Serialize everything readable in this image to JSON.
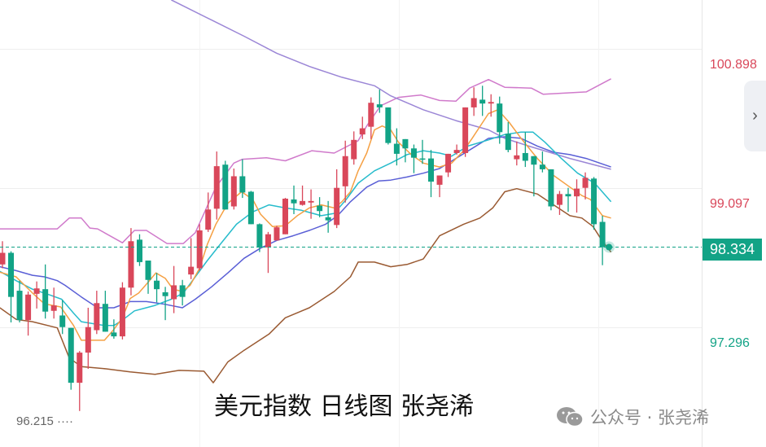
{
  "chart_data": {
    "type": "candlestick",
    "title": "",
    "caption": "美元指数 日线图 张尧浠",
    "colors": {
      "up": "#d9475a",
      "down": "#12a386",
      "ma5": "#f5a043",
      "ma10": "#27bccc",
      "ma20": "#5a5fd6",
      "ma60": "#9b86d6",
      "upper_band": "#d07acb",
      "lower_band": "#9a5a32",
      "grid": "#eeeeee"
    },
    "y_axis": {
      "position": "right",
      "ticks": [
        100.898,
        99.097,
        97.296
      ],
      "tick_labels": [
        "100.898",
        "99.097",
        "97.296"
      ],
      "tick_colors": [
        "#d9475a",
        "#d9475a",
        "#12a386"
      ]
    },
    "last_price": {
      "value": 98.334,
      "label": "98.334",
      "color": "#12a386"
    },
    "low_marker": {
      "value": 96.215,
      "label": "96.215 ····",
      "candle": 9
    },
    "ohlc_columns": [
      "open",
      "high",
      "low",
      "close"
    ],
    "candles": [
      [
        98.11,
        98.41,
        98.06,
        98.26
      ],
      [
        98.26,
        98.28,
        97.36,
        97.69
      ],
      [
        97.77,
        97.9,
        97.36,
        97.39
      ],
      [
        97.39,
        97.76,
        97.19,
        97.72
      ],
      [
        97.73,
        97.89,
        97.54,
        97.8
      ],
      [
        97.79,
        98.11,
        97.41,
        97.5
      ],
      [
        97.51,
        97.81,
        97.41,
        97.58
      ],
      [
        97.45,
        97.65,
        97.21,
        97.3
      ],
      [
        97.29,
        97.29,
        96.49,
        96.58
      ],
      [
        96.58,
        96.99,
        96.215,
        96.97
      ],
      [
        96.97,
        97.55,
        96.76,
        97.3
      ],
      [
        97.26,
        97.77,
        97.21,
        97.61
      ],
      [
        97.6,
        97.77,
        97.24,
        97.24
      ],
      [
        97.23,
        97.4,
        97.15,
        97.18
      ],
      [
        97.18,
        97.88,
        97.14,
        97.81
      ],
      [
        97.81,
        98.58,
        97.71,
        98.41
      ],
      [
        98.43,
        98.5,
        98.09,
        98.14
      ],
      [
        98.16,
        98.16,
        97.73,
        97.91
      ],
      [
        97.9,
        98.0,
        97.62,
        97.79
      ],
      [
        97.75,
        97.82,
        97.39,
        97.7
      ],
      [
        97.66,
        98.09,
        97.48,
        97.84
      ],
      [
        97.84,
        97.91,
        97.58,
        97.69
      ],
      [
        97.98,
        98.45,
        97.92,
        98.08
      ],
      [
        98.06,
        98.63,
        98.03,
        98.55
      ],
      [
        98.56,
        99.04,
        98.53,
        98.82
      ],
      [
        98.83,
        99.57,
        98.69,
        99.38
      ],
      [
        99.4,
        99.45,
        98.82,
        98.82
      ],
      [
        98.86,
        99.35,
        98.82,
        99.25
      ],
      [
        99.25,
        99.47,
        98.97,
        99.04
      ],
      [
        99.05,
        99.06,
        98.63,
        98.63
      ],
      [
        98.63,
        98.64,
        98.27,
        98.33
      ],
      [
        98.33,
        98.53,
        98.0,
        98.5
      ],
      [
        98.42,
        98.61,
        98.42,
        98.59
      ],
      [
        98.5,
        98.97,
        98.5,
        98.96
      ],
      [
        98.95,
        99.13,
        98.76,
        98.9
      ],
      [
        98.88,
        99.13,
        98.87,
        98.93
      ],
      [
        98.91,
        99.08,
        98.7,
        98.93
      ],
      [
        98.87,
        98.98,
        98.72,
        98.8
      ],
      [
        98.72,
        98.93,
        98.52,
        98.68
      ],
      [
        98.62,
        99.34,
        98.58,
        99.1
      ],
      [
        99.12,
        99.71,
        98.91,
        99.51
      ],
      [
        99.47,
        99.83,
        99.4,
        99.72
      ],
      [
        99.79,
        100.02,
        99.73,
        99.87
      ],
      [
        99.89,
        100.27,
        99.73,
        100.2
      ],
      [
        100.18,
        100.37,
        100.07,
        100.14
      ],
      [
        100.14,
        100.14,
        99.66,
        99.68
      ],
      [
        99.67,
        99.87,
        99.39,
        99.54
      ],
      [
        99.73,
        99.73,
        99.43,
        99.61
      ],
      [
        99.61,
        99.66,
        99.29,
        99.49
      ],
      [
        99.48,
        99.72,
        99.41,
        99.47
      ],
      [
        99.48,
        99.59,
        98.98,
        99.18
      ],
      [
        99.14,
        99.26,
        98.98,
        99.26
      ],
      [
        99.3,
        99.54,
        99.24,
        99.54
      ],
      [
        99.55,
        99.66,
        99.53,
        99.59
      ],
      [
        99.55,
        100.14,
        99.5,
        100.14
      ],
      [
        100.14,
        100.4,
        100.03,
        100.26
      ],
      [
        100.24,
        100.42,
        100.03,
        100.19
      ],
      [
        100.19,
        100.31,
        100.02,
        100.21
      ],
      [
        100.19,
        100.28,
        99.67,
        99.82
      ],
      [
        99.8,
        99.95,
        99.56,
        99.59
      ],
      [
        99.47,
        99.7,
        99.39,
        99.52
      ],
      [
        99.55,
        99.82,
        99.37,
        99.45
      ],
      [
        99.51,
        99.51,
        98.99,
        99.4
      ],
      [
        99.4,
        99.57,
        99.3,
        99.34
      ],
      [
        99.34,
        99.34,
        98.81,
        98.86
      ],
      [
        98.88,
        99.06,
        98.75,
        99.02
      ],
      [
        99.02,
        99.1,
        98.79,
        98.99
      ],
      [
        98.99,
        99.21,
        98.78,
        99.09
      ],
      [
        99.1,
        99.3,
        98.95,
        99.23
      ],
      [
        99.22,
        99.24,
        98.56,
        98.63
      ],
      [
        98.66,
        98.74,
        98.1,
        98.334
      ]
    ],
    "lines": {
      "upper_band": [
        [
          -0.3,
          98.57
        ],
        [
          6.4,
          98.57
        ],
        [
          7.8,
          98.71
        ],
        [
          9.2,
          98.71
        ],
        [
          10.2,
          98.58
        ],
        [
          11.1,
          98.57
        ],
        [
          14.0,
          98.39
        ],
        [
          15.4,
          98.55
        ],
        [
          16.8,
          98.55
        ],
        [
          19.2,
          98.38
        ],
        [
          21.1,
          98.38
        ],
        [
          22.5,
          98.52
        ],
        [
          24.9,
          99.11
        ],
        [
          27.0,
          99.42
        ],
        [
          28.0,
          99.47
        ],
        [
          30.8,
          99.49
        ],
        [
          33.0,
          99.45
        ],
        [
          36.1,
          99.58
        ],
        [
          38.7,
          99.55
        ],
        [
          41.5,
          99.71
        ],
        [
          42.5,
          99.9
        ],
        [
          44.1,
          100.16
        ],
        [
          46.2,
          100.27
        ],
        [
          48.8,
          100.3
        ],
        [
          51.0,
          100.23
        ],
        [
          52.9,
          100.22
        ],
        [
          54.5,
          100.39
        ],
        [
          56.7,
          100.5
        ],
        [
          58.6,
          100.4
        ],
        [
          61.7,
          100.39
        ],
        [
          63.1,
          100.31
        ],
        [
          68.1,
          100.34
        ],
        [
          71.0,
          100.51
        ]
      ],
      "lower_band": [
        [
          -0.3,
          97.55
        ],
        [
          1.6,
          97.4
        ],
        [
          3.5,
          97.37
        ],
        [
          6.4,
          97.29
        ],
        [
          7.8,
          96.9
        ],
        [
          9.2,
          96.79
        ],
        [
          12.1,
          96.76
        ],
        [
          14.9,
          96.72
        ],
        [
          17.8,
          96.69
        ],
        [
          20.6,
          96.74
        ],
        [
          23.5,
          96.73
        ],
        [
          24.6,
          96.58
        ],
        [
          26.3,
          96.85
        ],
        [
          28.2,
          97.0
        ],
        [
          31.1,
          97.21
        ],
        [
          33.0,
          97.42
        ],
        [
          35.8,
          97.55
        ],
        [
          38.7,
          97.76
        ],
        [
          40.6,
          97.95
        ],
        [
          41.5,
          98.14
        ],
        [
          43.4,
          98.14
        ],
        [
          45.3,
          98.08
        ],
        [
          47.2,
          98.11
        ],
        [
          49.1,
          98.18
        ],
        [
          51.0,
          98.48
        ],
        [
          53.8,
          98.63
        ],
        [
          55.7,
          98.71
        ],
        [
          57.2,
          98.84
        ],
        [
          58.6,
          99.05
        ],
        [
          60.0,
          99.09
        ],
        [
          62.4,
          99.02
        ],
        [
          64.3,
          98.88
        ],
        [
          66.2,
          98.74
        ],
        [
          67.6,
          98.71
        ],
        [
          68.9,
          98.6
        ],
        [
          70.0,
          98.41
        ],
        [
          71.0,
          98.27
        ]
      ],
      "ma5": [
        [
          -0.3,
          98.01
        ],
        [
          1.6,
          97.95
        ],
        [
          3.5,
          97.74
        ],
        [
          4.9,
          97.6
        ],
        [
          6.8,
          97.56
        ],
        [
          8.3,
          97.32
        ],
        [
          9.2,
          97.13
        ],
        [
          11.9,
          97.13
        ],
        [
          13.0,
          97.27
        ],
        [
          14.0,
          97.42
        ],
        [
          14.9,
          97.67
        ],
        [
          15.9,
          97.74
        ],
        [
          17.0,
          97.88
        ],
        [
          17.9,
          98.0
        ],
        [
          19.0,
          97.93
        ],
        [
          19.9,
          97.79
        ],
        [
          21.0,
          97.76
        ],
        [
          21.9,
          97.84
        ],
        [
          23.0,
          98.06
        ],
        [
          23.9,
          98.37
        ],
        [
          24.9,
          98.63
        ],
        [
          26.3,
          98.9
        ],
        [
          27.9,
          99.05
        ],
        [
          29.2,
          98.95
        ],
        [
          30.1,
          98.76
        ],
        [
          31.5,
          98.6
        ],
        [
          33.0,
          98.61
        ],
        [
          34.4,
          98.74
        ],
        [
          35.8,
          98.84
        ],
        [
          37.2,
          98.88
        ],
        [
          38.7,
          98.84
        ],
        [
          39.6,
          98.92
        ],
        [
          40.6,
          99.05
        ],
        [
          41.5,
          99.32
        ],
        [
          42.5,
          99.55
        ],
        [
          43.4,
          99.85
        ],
        [
          44.3,
          99.9
        ],
        [
          45.3,
          99.85
        ],
        [
          46.2,
          99.69
        ],
        [
          47.7,
          99.53
        ],
        [
          49.1,
          99.42
        ],
        [
          51.0,
          99.37
        ],
        [
          52.4,
          99.42
        ],
        [
          53.8,
          99.58
        ],
        [
          54.8,
          99.74
        ],
        [
          56.7,
          100.06
        ],
        [
          57.8,
          100.11
        ],
        [
          59.1,
          99.95
        ],
        [
          60.5,
          99.74
        ],
        [
          62.4,
          99.48
        ],
        [
          64.3,
          99.26
        ],
        [
          66.2,
          99.11
        ],
        [
          67.6,
          99.0
        ],
        [
          68.6,
          98.95
        ],
        [
          70.0,
          98.74
        ],
        [
          71.0,
          98.71
        ]
      ],
      "ma10": [
        [
          -0.3,
          98.02
        ],
        [
          1.6,
          97.9
        ],
        [
          3.5,
          97.79
        ],
        [
          5.4,
          97.72
        ],
        [
          6.9,
          97.66
        ],
        [
          8.3,
          97.48
        ],
        [
          9.2,
          97.37
        ],
        [
          11.9,
          97.32
        ],
        [
          13.0,
          97.32
        ],
        [
          14.0,
          97.39
        ],
        [
          15.4,
          97.51
        ],
        [
          17.8,
          97.58
        ],
        [
          19.7,
          97.66
        ],
        [
          21.1,
          97.74
        ],
        [
          22.5,
          97.95
        ],
        [
          23.9,
          98.16
        ],
        [
          25.4,
          98.37
        ],
        [
          27.3,
          98.63
        ],
        [
          29.2,
          98.79
        ],
        [
          31.1,
          98.88
        ],
        [
          33.0,
          98.84
        ],
        [
          34.9,
          98.81
        ],
        [
          37.2,
          98.74
        ],
        [
          38.7,
          98.77
        ],
        [
          40.1,
          98.95
        ],
        [
          41.5,
          99.16
        ],
        [
          43.4,
          99.32
        ],
        [
          45.3,
          99.42
        ],
        [
          47.2,
          99.53
        ],
        [
          49.1,
          99.58
        ],
        [
          51.0,
          99.55
        ],
        [
          52.4,
          99.51
        ],
        [
          54.3,
          99.64
        ],
        [
          56.7,
          99.72
        ],
        [
          58.6,
          99.79
        ],
        [
          60.5,
          99.82
        ],
        [
          61.9,
          99.82
        ],
        [
          63.3,
          99.69
        ],
        [
          65.2,
          99.48
        ],
        [
          67.1,
          99.29
        ],
        [
          69.1,
          99.16
        ],
        [
          71.0,
          98.92
        ]
      ],
      "ma20": [
        [
          -0.3,
          98.08
        ],
        [
          1.6,
          98.03
        ],
        [
          3.5,
          97.97
        ],
        [
          4.9,
          97.95
        ],
        [
          6.4,
          97.9
        ],
        [
          7.3,
          97.84
        ],
        [
          9.2,
          97.69
        ],
        [
          11.1,
          97.55
        ],
        [
          13.0,
          97.55
        ],
        [
          14.9,
          97.63
        ],
        [
          16.8,
          97.63
        ],
        [
          18.7,
          97.6
        ],
        [
          21.0,
          97.55
        ],
        [
          22.5,
          97.66
        ],
        [
          24.4,
          97.82
        ],
        [
          26.3,
          98.0
        ],
        [
          28.2,
          98.19
        ],
        [
          30.1,
          98.32
        ],
        [
          32.0,
          98.42
        ],
        [
          33.9,
          98.48
        ],
        [
          35.8,
          98.55
        ],
        [
          37.7,
          98.63
        ],
        [
          39.1,
          98.74
        ],
        [
          40.6,
          98.92
        ],
        [
          42.5,
          99.11
        ],
        [
          43.9,
          99.19
        ],
        [
          45.3,
          99.2
        ],
        [
          47.2,
          99.24
        ],
        [
          49.1,
          99.29
        ],
        [
          51.0,
          99.35
        ],
        [
          52.9,
          99.48
        ],
        [
          54.8,
          99.61
        ],
        [
          56.7,
          99.74
        ],
        [
          58.6,
          99.76
        ],
        [
          60.5,
          99.74
        ],
        [
          62.4,
          99.64
        ],
        [
          64.3,
          99.56
        ],
        [
          66.2,
          99.53
        ],
        [
          68.1,
          99.48
        ],
        [
          71.0,
          99.37
        ]
      ],
      "ma60": [
        [
          19.7,
          101.53
        ],
        [
          24.4,
          101.27
        ],
        [
          28.2,
          101.06
        ],
        [
          32.0,
          100.84
        ],
        [
          35.8,
          100.67
        ],
        [
          39.6,
          100.53
        ],
        [
          43.4,
          100.42
        ],
        [
          45.3,
          100.29
        ],
        [
          49.1,
          100.11
        ],
        [
          52.9,
          99.97
        ],
        [
          56.7,
          99.85
        ],
        [
          58.6,
          99.74
        ],
        [
          61.4,
          99.64
        ],
        [
          66.2,
          99.48
        ],
        [
          71.0,
          99.34
        ]
      ]
    }
  },
  "watermark": {
    "icon": "wechat-icon",
    "text": "公众号 · 张尧浠"
  },
  "expand_button": {
    "icon": "chevron-right-icon",
    "glyph": "›"
  }
}
